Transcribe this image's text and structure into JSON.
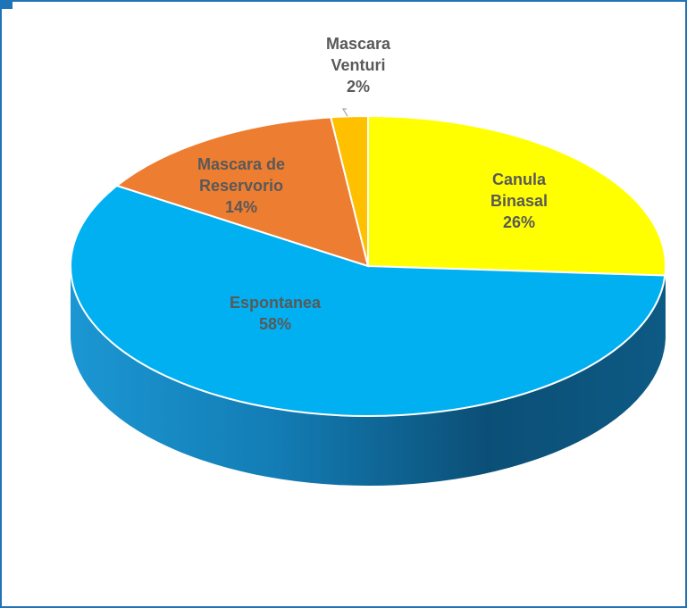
{
  "chart_data": {
    "type": "pie",
    "title": "",
    "slices": [
      {
        "label_lines": [
          "Canula",
          "Binasal"
        ],
        "value": 26,
        "pct_text": "26%",
        "color": "#ffff00"
      },
      {
        "label_lines": [
          "Espontanea"
        ],
        "value": 58,
        "pct_text": "58%",
        "color": "#00b0f0"
      },
      {
        "label_lines": [
          "Mascara de",
          "Reservorio"
        ],
        "value": 14,
        "pct_text": "14%",
        "color": "#ed7d31"
      },
      {
        "label_lines": [
          "Mascara",
          "Venturi"
        ],
        "value": 2,
        "pct_text": "2%",
        "color": "#ffc000"
      }
    ],
    "colors": {
      "side_dark": "#0a4a6e",
      "side_light": "#1c8ec4",
      "frame": "#1f74b8"
    }
  }
}
